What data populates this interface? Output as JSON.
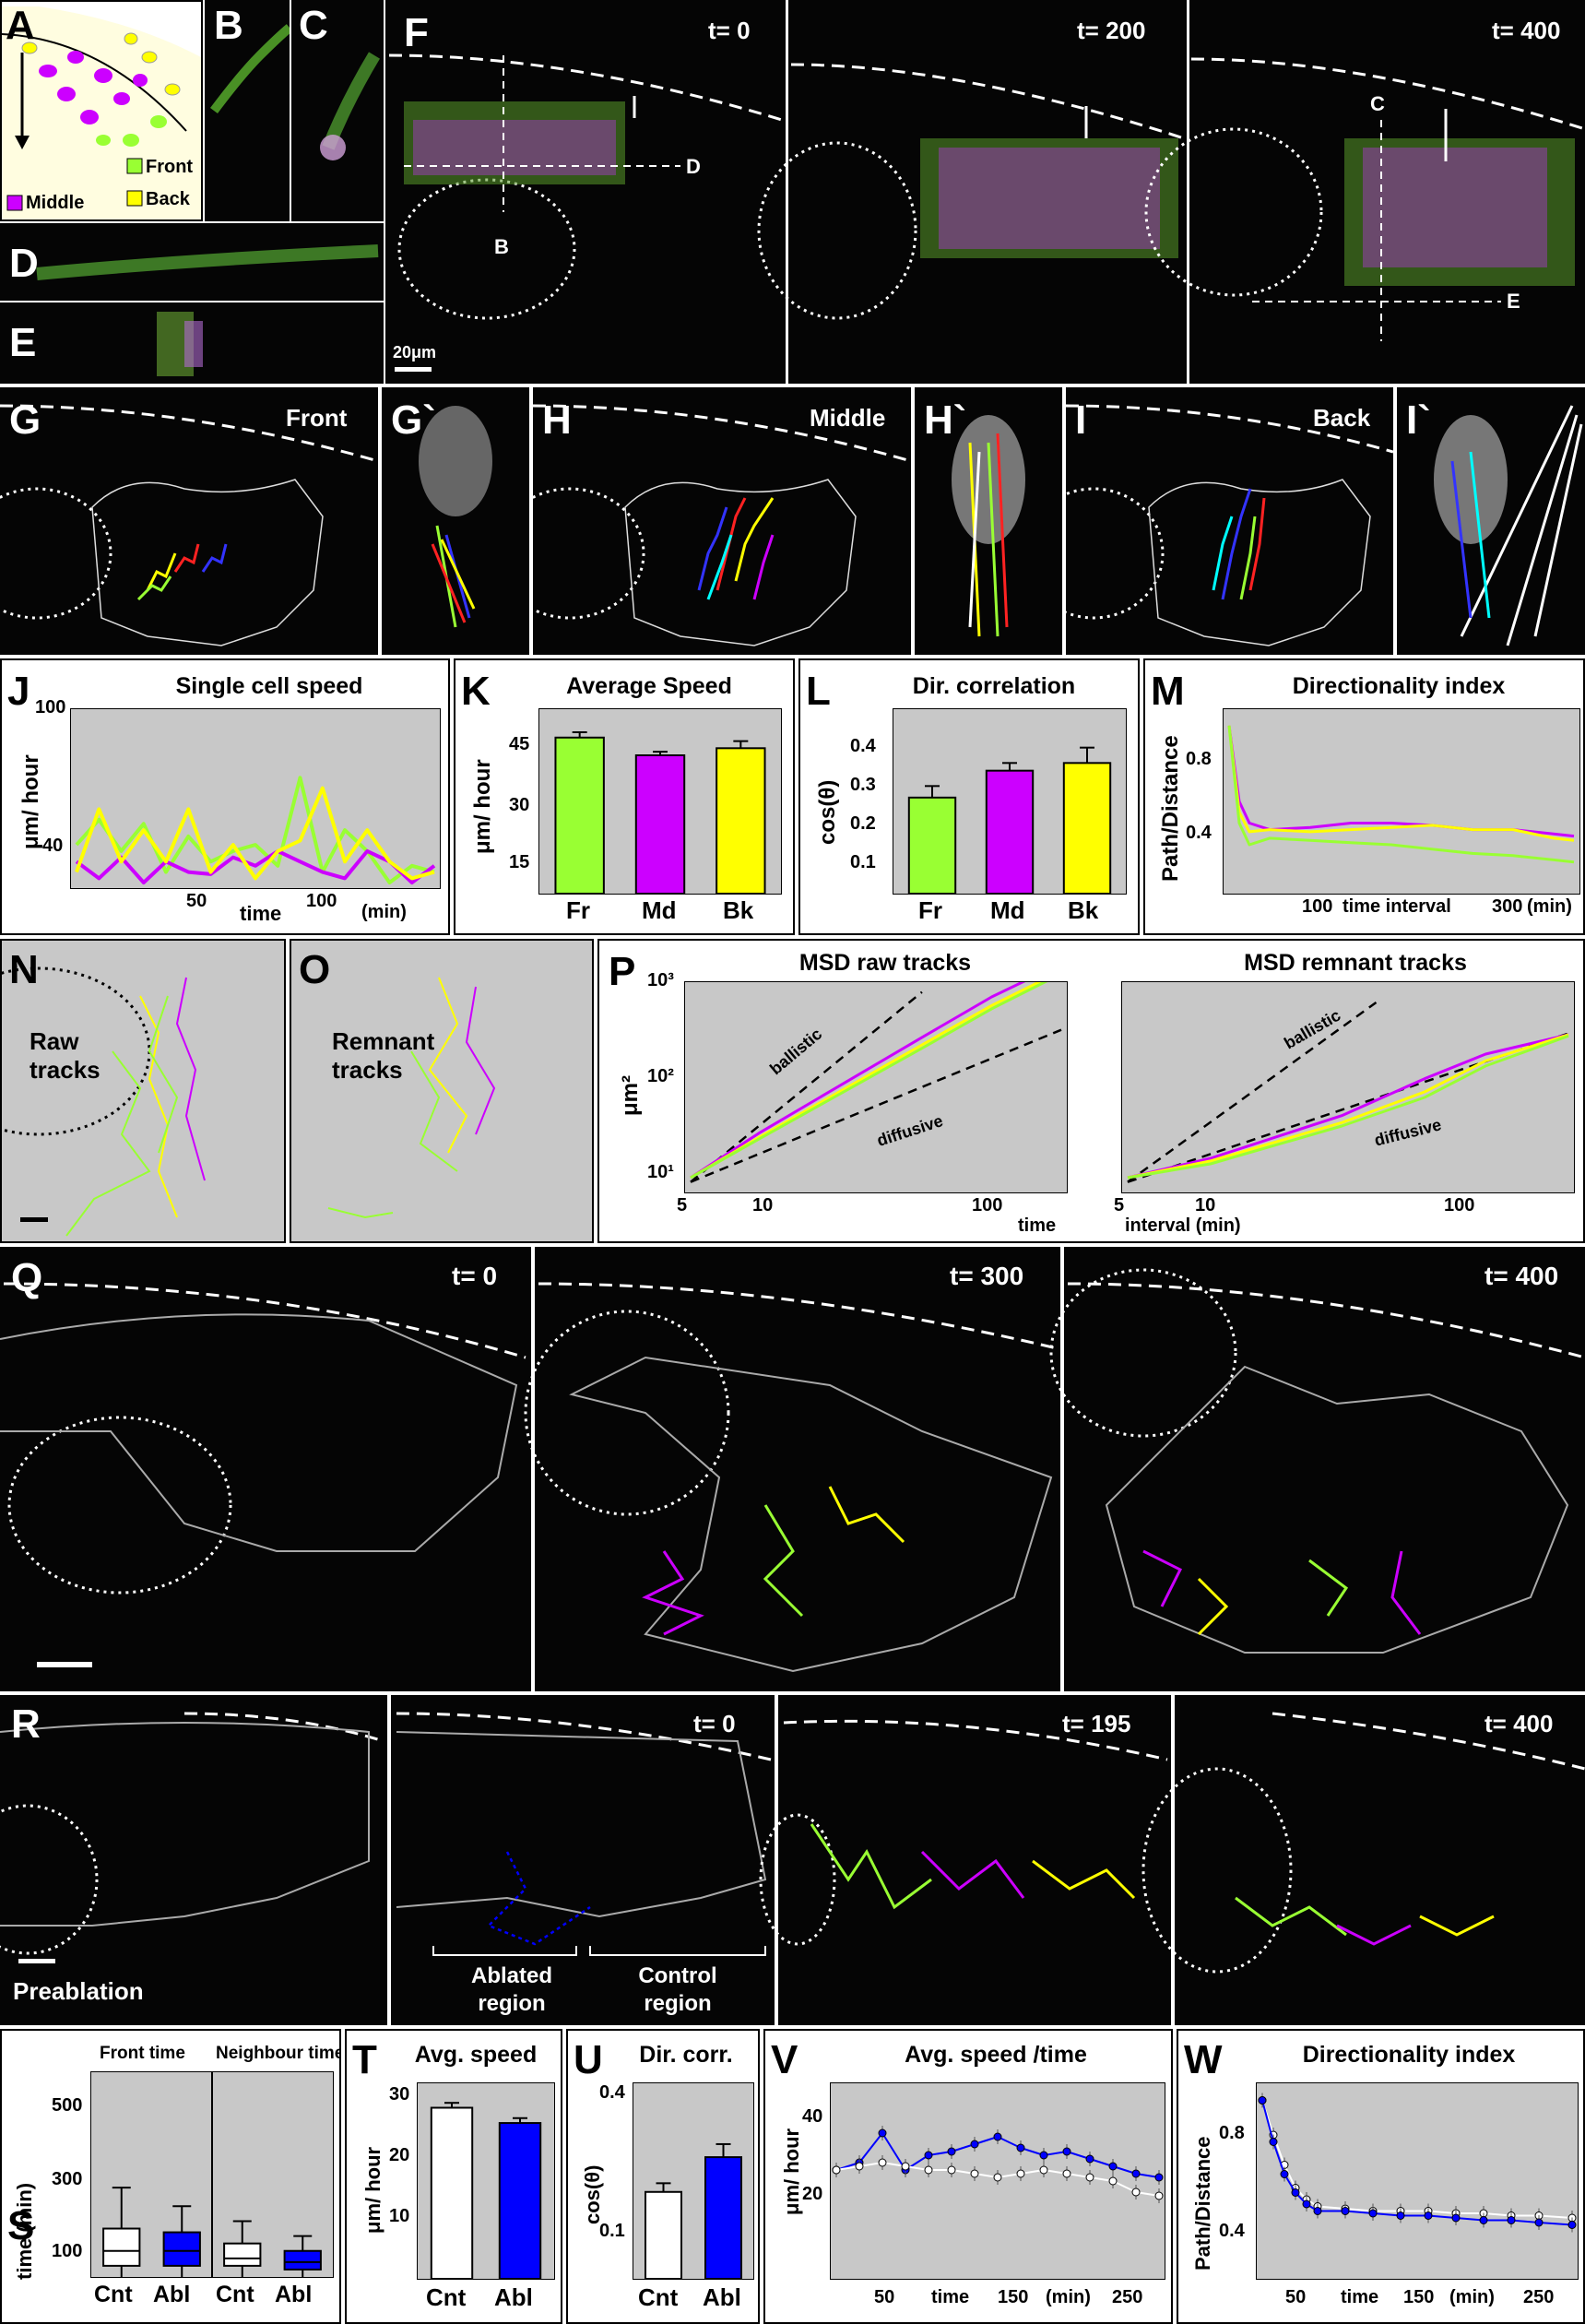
{
  "panel_letters": {
    "A": "A",
    "B": "B",
    "C": "C",
    "D": "D",
    "E": "E",
    "F": "F",
    "G": "G",
    "Gp": "G`",
    "H": "H",
    "Hp": "H`",
    "I": "I",
    "Ip": "I`",
    "J": "J",
    "K": "K",
    "L": "L",
    "M": "M",
    "N": "N",
    "O": "O",
    "P": "P",
    "Q": "Q",
    "R": "R",
    "S": "S",
    "T": "T",
    "U": "U",
    "V": "V",
    "W": "W"
  },
  "legend_A": {
    "front": "Front",
    "middle": "Middle",
    "back": "Back"
  },
  "panel_F": {
    "t0": "t= 0",
    "t200": "t= 200",
    "t400": "t= 400",
    "marker_B": "B",
    "marker_C": "C",
    "marker_D": "D",
    "marker_E": "E",
    "scale": "20μm"
  },
  "panel_GHI": {
    "front": "Front",
    "middle": "Middle",
    "back": "Back"
  },
  "panel_NO": {
    "raw": "Raw tracks",
    "remnant": "Remnant tracks"
  },
  "panel_Q": {
    "t0": "t= 0",
    "t300": "t= 300",
    "t400": "t= 400"
  },
  "panel_R": {
    "t0": "t= 0",
    "t195": "t= 195",
    "t400": "t= 400",
    "preablation": "Preablation",
    "ablated": "Ablated region",
    "control": "Control region"
  },
  "colors": {
    "front": "#99ff33",
    "middle": "#cc00ff",
    "back": "#ffff00",
    "cnt": "#ffffff",
    "abl": "#0000ff",
    "plot_bg": "#c8c8c8"
  },
  "chart_data": [
    {
      "id": "J",
      "type": "line",
      "title": "Single cell speed",
      "ylabel": "μm/ hour",
      "xlabel": "time",
      "xunit": "(min)",
      "xticks": [
        "50",
        "100"
      ],
      "yticks": [
        "40",
        "100"
      ],
      "ylim": [
        20,
        100
      ],
      "xlim": [
        0,
        160
      ],
      "series": [
        {
          "color": "#99ff33",
          "x": [
            0,
            10,
            20,
            30,
            40,
            50,
            60,
            70,
            80,
            90,
            100,
            110,
            120,
            130,
            140,
            150,
            160
          ],
          "y": [
            38,
            50,
            35,
            48,
            25,
            42,
            30,
            35,
            38,
            28,
            70,
            25,
            45,
            35,
            20,
            28,
            25
          ]
        },
        {
          "color": "#cc00ff",
          "x": [
            0,
            10,
            20,
            30,
            40,
            50,
            60,
            70,
            80,
            90,
            100,
            110,
            120,
            130,
            140,
            150,
            160
          ],
          "y": [
            30,
            22,
            32,
            20,
            30,
            25,
            24,
            32,
            28,
            35,
            30,
            25,
            22,
            35,
            30,
            20,
            28
          ]
        },
        {
          "color": "#ffff00",
          "x": [
            0,
            10,
            20,
            30,
            40,
            50,
            60,
            70,
            80,
            90,
            100,
            110,
            120,
            130,
            140,
            150,
            160
          ],
          "y": [
            25,
            55,
            30,
            45,
            30,
            55,
            25,
            38,
            22,
            35,
            40,
            65,
            30,
            45,
            30,
            22,
            25
          ]
        }
      ]
    },
    {
      "id": "K",
      "type": "bar",
      "title": "Average Speed",
      "ylabel": "μm/ hour",
      "categories": [
        "Fr",
        "Md",
        "Bk"
      ],
      "values": [
        44,
        39,
        41
      ],
      "errors": [
        1.5,
        1.0,
        2.0
      ],
      "colors": [
        "#99ff33",
        "#cc00ff",
        "#ffff00"
      ],
      "yticks": [
        "15",
        "30",
        "45"
      ],
      "ylim": [
        0,
        52
      ]
    },
    {
      "id": "L",
      "type": "bar",
      "title": "Dir. correlation",
      "ylabel": "cos(θ)",
      "categories": [
        "Fr",
        "Md",
        "Bk"
      ],
      "values": [
        0.25,
        0.32,
        0.34
      ],
      "errors": [
        0.03,
        0.02,
        0.04
      ],
      "colors": [
        "#99ff33",
        "#cc00ff",
        "#ffff00"
      ],
      "yticks": [
        "0.1",
        "0.2",
        "0.3",
        "0.4"
      ],
      "ylim": [
        0,
        0.48
      ]
    },
    {
      "id": "M",
      "type": "line",
      "title": "Directionality index",
      "ylabel": "Path/Distance",
      "xlabel": "time interval",
      "xunit": "(min)",
      "xticks": [
        "100",
        "300"
      ],
      "yticks": [
        "0.4",
        "0.8"
      ],
      "ylim": [
        0.2,
        1.0
      ],
      "xlim": [
        0,
        340
      ],
      "series": [
        {
          "color": "#cc00ff",
          "x": [
            0,
            10,
            20,
            40,
            80,
            120,
            160,
            200,
            240,
            280,
            320,
            340
          ],
          "y": [
            0.95,
            0.6,
            0.5,
            0.47,
            0.48,
            0.5,
            0.5,
            0.49,
            0.47,
            0.47,
            0.45,
            0.44
          ]
        },
        {
          "color": "#ffff00",
          "x": [
            0,
            10,
            20,
            40,
            80,
            120,
            160,
            200,
            240,
            280,
            320,
            340
          ],
          "y": [
            0.95,
            0.55,
            0.46,
            0.47,
            0.46,
            0.47,
            0.48,
            0.49,
            0.47,
            0.47,
            0.43,
            0.42
          ]
        },
        {
          "color": "#99ff33",
          "x": [
            0,
            10,
            20,
            40,
            80,
            120,
            160,
            200,
            240,
            280,
            320,
            340
          ],
          "y": [
            0.95,
            0.5,
            0.4,
            0.43,
            0.42,
            0.41,
            0.4,
            0.38,
            0.36,
            0.35,
            0.33,
            0.32
          ]
        }
      ]
    },
    {
      "id": "P1",
      "type": "line",
      "title": "MSD raw tracks",
      "ylabel": "μm²",
      "xticks": [
        "5",
        "10",
        "100"
      ],
      "yticks": [
        "10¹",
        "10²",
        "10³"
      ],
      "xlabel": "time",
      "xscale": "log",
      "yscale": "log",
      "xlim": [
        5,
        200
      ],
      "ylim": [
        8,
        1000
      ],
      "ref_labels": [
        "ballistic",
        "diffusive"
      ],
      "series": [
        {
          "color": "#cc00ff",
          "x": [
            5,
            10,
            50,
            100,
            200
          ],
          "y": [
            10,
            30,
            300,
            800,
            1800
          ]
        },
        {
          "color": "#ffff00",
          "x": [
            5,
            10,
            50,
            100,
            200
          ],
          "y": [
            10,
            27,
            250,
            650,
            1500
          ]
        },
        {
          "color": "#99ff33",
          "x": [
            5,
            10,
            50,
            100,
            200
          ],
          "y": [
            10,
            26,
            230,
            600,
            1400
          ]
        }
      ]
    },
    {
      "id": "P2",
      "type": "line",
      "title": "MSD remnant tracks",
      "xticks": [
        "5",
        "10",
        "100"
      ],
      "xlabel": "interval (min)",
      "xscale": "log",
      "yscale": "log",
      "xlim": [
        5,
        200
      ],
      "ylim": [
        8,
        1000
      ],
      "ref_labels": [
        "ballistic",
        "diffusive"
      ],
      "series": [
        {
          "color": "#cc00ff",
          "x": [
            5,
            10,
            30,
            60,
            100,
            200
          ],
          "y": [
            10,
            16,
            45,
            110,
            200,
            320
          ]
        },
        {
          "color": "#ffff00",
          "x": [
            5,
            10,
            30,
            60,
            100,
            200
          ],
          "y": [
            10,
            15,
            38,
            80,
            170,
            320
          ]
        },
        {
          "color": "#99ff33",
          "x": [
            5,
            10,
            30,
            60,
            100,
            200
          ],
          "y": [
            10,
            14,
            35,
            70,
            150,
            310
          ]
        }
      ]
    },
    {
      "id": "S",
      "type": "box",
      "titles": [
        "Front time",
        "Neighbour time"
      ],
      "ylabel": "time (min)",
      "categories": [
        "Cnt",
        "Abl",
        "Cnt",
        "Abl"
      ],
      "yticks": [
        "100",
        "300",
        "500"
      ],
      "ylim": [
        0,
        550
      ],
      "boxes": [
        {
          "color": "#ffffff",
          "q1": 30,
          "median": 70,
          "q3": 130,
          "whisker_low": 0,
          "whisker_high": 240
        },
        {
          "color": "#0000ff",
          "q1": 30,
          "median": 70,
          "q3": 120,
          "whisker_low": 0,
          "whisker_high": 190
        },
        {
          "color": "#ffffff",
          "q1": 30,
          "median": 50,
          "q3": 90,
          "whisker_low": 0,
          "whisker_high": 150
        },
        {
          "color": "#0000ff",
          "q1": 20,
          "median": 40,
          "q3": 70,
          "whisker_low": 0,
          "whisker_high": 110
        }
      ]
    },
    {
      "id": "T",
      "type": "bar",
      "title": "Avg. speed",
      "ylabel": "μm/ hour",
      "categories": [
        "Cnt",
        "Abl"
      ],
      "values": [
        28,
        25.5
      ],
      "errors": [
        0.8,
        0.8
      ],
      "colors": [
        "#ffffff",
        "#0000ff"
      ],
      "yticks": [
        "10",
        "20",
        "30"
      ],
      "ylim": [
        0,
        32
      ]
    },
    {
      "id": "U",
      "type": "bar",
      "title": "Dir. corr.",
      "ylabel": "cos(θ)",
      "categories": [
        "Cnt",
        "Abl"
      ],
      "values": [
        0.2,
        0.28
      ],
      "errors": [
        0.02,
        0.03
      ],
      "colors": [
        "#ffffff",
        "#0000ff"
      ],
      "yticks": [
        "0.1",
        "0.4"
      ],
      "ylim": [
        0,
        0.45
      ]
    },
    {
      "id": "V",
      "type": "line",
      "title": "Avg. speed /time",
      "ylabel": "μm/ hour",
      "xlabel": "time",
      "xunit": "(min)",
      "xticks": [
        "50",
        "150",
        "250"
      ],
      "yticks": [
        "20",
        "40"
      ],
      "ylim": [
        0,
        50
      ],
      "xlim": [
        0,
        280
      ],
      "series": [
        {
          "color": "#0000ff",
          "x": [
            0,
            20,
            40,
            60,
            80,
            100,
            120,
            140,
            160,
            180,
            200,
            220,
            240,
            260,
            280
          ],
          "y": [
            28,
            30,
            38,
            28,
            32,
            33,
            35,
            37,
            34,
            32,
            33,
            31,
            29,
            27,
            26
          ]
        },
        {
          "color": "#ffffff",
          "x": [
            0,
            20,
            40,
            60,
            80,
            100,
            120,
            140,
            160,
            180,
            200,
            220,
            240,
            260,
            280
          ],
          "y": [
            28,
            29,
            30,
            29,
            28,
            28,
            27,
            26,
            27,
            28,
            27,
            26,
            25,
            22,
            21
          ]
        }
      ]
    },
    {
      "id": "W",
      "type": "line",
      "title": "Directionality index",
      "ylabel": "Path/Distance",
      "xlabel": "time",
      "xunit": "(min)",
      "xticks": [
        "50",
        "150",
        "250"
      ],
      "yticks": [
        "0.4",
        "0.8"
      ],
      "ylim": [
        0.15,
        0.95
      ],
      "xlim": [
        0,
        280
      ],
      "series": [
        {
          "color": "#ffffff",
          "x": [
            0,
            10,
            20,
            30,
            40,
            50,
            75,
            100,
            125,
            150,
            175,
            200,
            225,
            250,
            280
          ],
          "y": [
            0.9,
            0.75,
            0.62,
            0.52,
            0.47,
            0.44,
            0.43,
            0.42,
            0.42,
            0.42,
            0.41,
            0.41,
            0.4,
            0.4,
            0.39
          ]
        },
        {
          "color": "#0000ff",
          "x": [
            0,
            10,
            20,
            30,
            40,
            50,
            75,
            100,
            125,
            150,
            175,
            200,
            225,
            250,
            280
          ],
          "y": [
            0.9,
            0.72,
            0.58,
            0.5,
            0.45,
            0.42,
            0.42,
            0.41,
            0.4,
            0.4,
            0.39,
            0.38,
            0.38,
            0.37,
            0.36
          ]
        }
      ]
    }
  ]
}
